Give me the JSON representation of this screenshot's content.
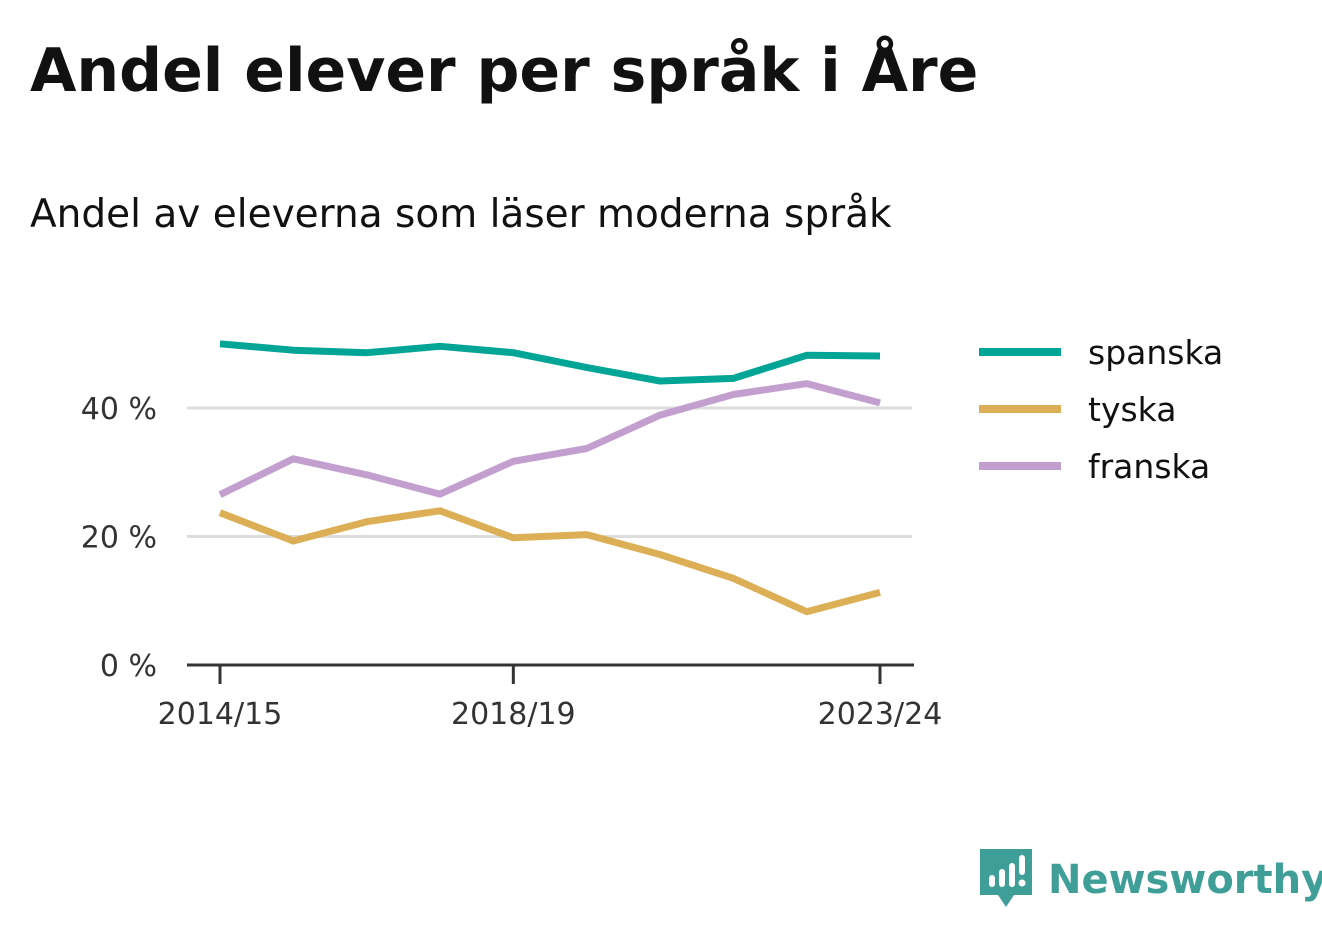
{
  "header": {
    "title": "Andel elever per språk i Åre",
    "subtitle": "Andel av eleverna som läser moderna språk"
  },
  "brand": {
    "name": "Newsworthy",
    "logo_icon": "newsworthy-logo-icon",
    "color": "#3f9f98"
  },
  "chart_data": {
    "type": "line",
    "x": [
      "2014/15",
      "2015/16",
      "2016/17",
      "2017/18",
      "2018/19",
      "2019/20",
      "2020/21",
      "2021/22",
      "2022/23",
      "2023/24"
    ],
    "x_tick_labels": [
      "2014/15",
      "2018/19",
      "2023/24"
    ],
    "y_ticks": [
      0,
      20,
      40
    ],
    "y_tick_labels": [
      "0 %",
      "20 %",
      "40 %"
    ],
    "ylim": [
      0,
      52
    ],
    "grid": true,
    "legend_position": "right",
    "series": [
      {
        "name": "spanska",
        "color": "#00a596",
        "values": [
          50.0,
          49.0,
          48.6,
          49.6,
          48.6,
          46.3,
          44.2,
          44.6,
          48.2,
          48.1
        ]
      },
      {
        "name": "tyska",
        "color": "#dcae55",
        "values": [
          23.7,
          19.3,
          22.3,
          24.0,
          19.8,
          20.3,
          17.2,
          13.5,
          8.3,
          11.3
        ]
      },
      {
        "name": "franska",
        "color": "#c39fd0",
        "values": [
          26.5,
          32.1,
          29.6,
          26.6,
          31.7,
          33.7,
          38.9,
          42.1,
          43.8,
          40.8
        ]
      }
    ]
  }
}
